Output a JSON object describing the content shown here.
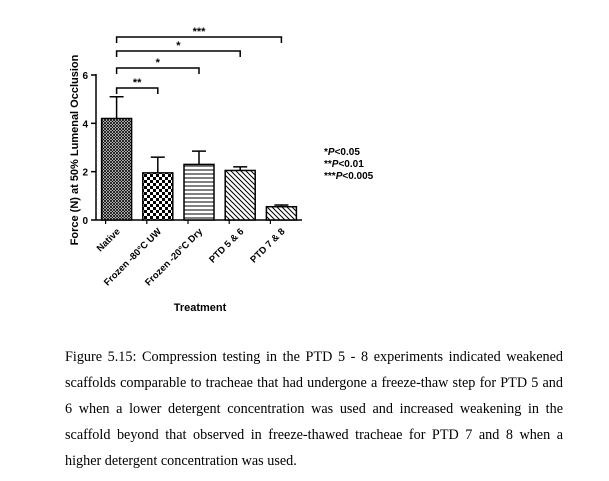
{
  "chart_data": {
    "type": "bar",
    "xlabel": "Treatment",
    "ylabel": "Force (N) at 50% Lumenal Occlusion",
    "ylim": [
      0,
      6
    ],
    "yticks": [
      0,
      2,
      4,
      6
    ],
    "categories": [
      "Native",
      "Frozen -80°C UW",
      "Frozen -20°C Dry",
      "PTD 5 & 6",
      "PTD 7 & 8"
    ],
    "values": [
      4.2,
      1.95,
      2.3,
      2.05,
      0.55
    ],
    "errors": [
      0.9,
      0.65,
      0.55,
      0.15,
      0.07
    ],
    "patterns": [
      "crosshatch",
      "checker",
      "horizontal",
      "diagonal-down",
      "diagonal-down"
    ],
    "significance": [
      {
        "from": 0,
        "to": 1,
        "label": "**"
      },
      {
        "from": 0,
        "to": 2,
        "label": "*"
      },
      {
        "from": 0,
        "to": 3,
        "label": "*"
      },
      {
        "from": 0,
        "to": 4,
        "label": "***"
      }
    ],
    "significance_legend": [
      {
        "stars": "*",
        "p": "P",
        "value": "<0.05"
      },
      {
        "stars": "**",
        "p": "P",
        "value": "<0.01"
      },
      {
        "stars": "***",
        "p": "P",
        "value": "<0.005"
      }
    ]
  },
  "caption": "Figure 5.15: Compression testing in the PTD 5 - 8 experiments indicated weakened scaffolds comparable to tracheae that had undergone a freeze-thaw step for PTD 5 and 6 when a lower detergent concentration was used and increased weakening in the scaffold beyond that observed in freeze-thawed tracheae for PTD 7 and 8 when a higher detergent concentration was used."
}
